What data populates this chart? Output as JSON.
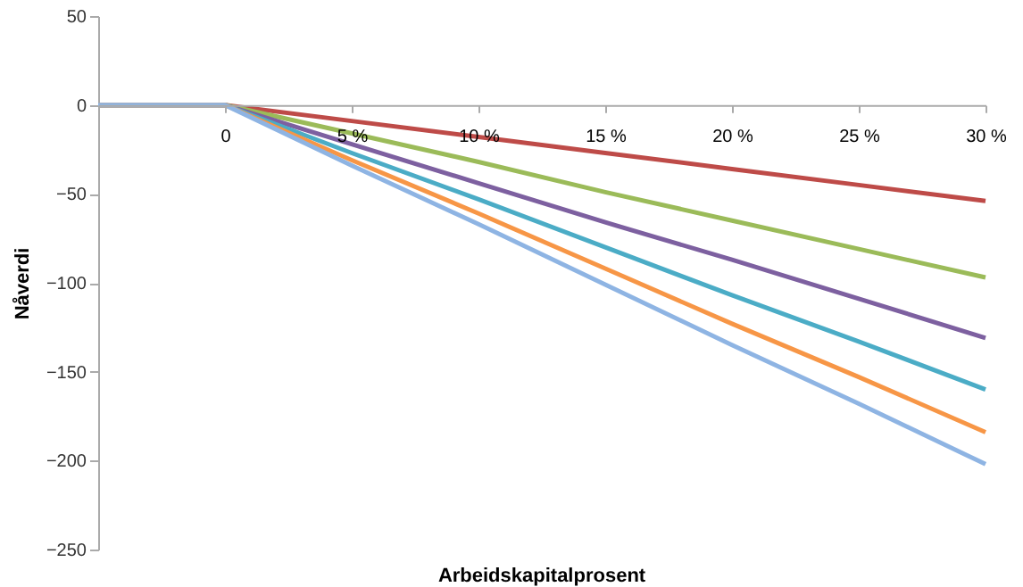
{
  "chart_data": {
    "type": "line",
    "xlabel": "Arbeidskapitalprosent",
    "ylabel": "Nåverdi",
    "categories": [
      null,
      "0",
      "5 %",
      "10 %",
      "15 %",
      "20 %",
      "25 %",
      "30 %"
    ],
    "series": [
      {
        "color": "#be4b48",
        "values": [
          0,
          0,
          -9,
          -18,
          -27,
          -36,
          -45,
          -54
        ]
      },
      {
        "color": "#9bbb59",
        "values": [
          0,
          0,
          -16,
          -32,
          -49,
          -65,
          -81,
          -97
        ]
      },
      {
        "color": "#7d60a0",
        "values": [
          0,
          0,
          -22,
          -44,
          -66,
          -87,
          -109,
          -131
        ]
      },
      {
        "color": "#4bacc6",
        "values": [
          0,
          0,
          -27,
          -53,
          -80,
          -107,
          -133,
          -160
        ]
      },
      {
        "color": "#f79646",
        "values": [
          0,
          0,
          -31,
          -61,
          -92,
          -123,
          -153,
          -184
        ]
      },
      {
        "color": "#8eb4e3",
        "values": [
          0,
          0,
          -34,
          -67,
          -101,
          -135,
          -168,
          -202
        ]
      }
    ],
    "ylim": [
      -250,
      50
    ],
    "yticks": [
      -250,
      -200,
      -150,
      -100,
      -50,
      0,
      50
    ],
    "grid": false,
    "marker": "none",
    "line_style": "solid"
  }
}
